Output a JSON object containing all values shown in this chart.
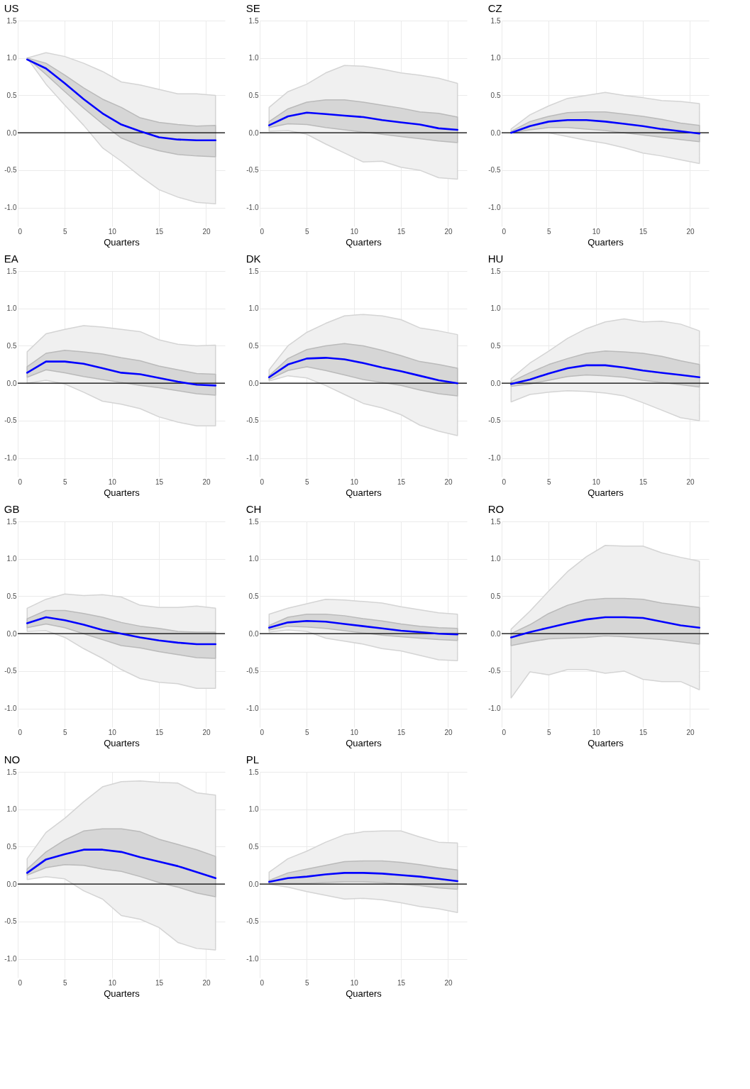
{
  "chart_data": [
    {
      "type": "line",
      "title": "US",
      "xlabel": "Quarters",
      "x": [
        1,
        3,
        5,
        7,
        9,
        11,
        13,
        15,
        17,
        19,
        21
      ],
      "xlim": [
        0,
        22
      ],
      "xticks": [
        0,
        5,
        10,
        15,
        20
      ],
      "ylim": [
        -1.25,
        1.5
      ],
      "yticks": [
        {
          "value": -1,
          "label": "-1.0"
        },
        -0.5,
        {
          "value": 0,
          "label": "0.0"
        },
        0.5,
        {
          "value": 1,
          "label": "1.0"
        },
        1.5
      ],
      "grid": true,
      "ref_lines": [
        {
          "axis": "y",
          "value": 0,
          "color": "#000000"
        }
      ],
      "series": [
        {
          "color": "#0000ff",
          "values": [
            null,
            null,
            null,
            null,
            null,
            null,
            null,
            null,
            null,
            null,
            null
          ],
          "lower": [
            1.0,
            0.65,
            0.37,
            0.1,
            -0.2,
            -0.38,
            -0.58,
            -0.76,
            -0.86,
            -0.93,
            -0.95
          ],
          "upper": [
            1.0,
            1.07,
            1.02,
            0.93,
            0.82,
            0.68,
            0.64,
            0.58,
            0.52,
            0.52,
            0.5
          ]
        },
        {
          "color": "#0000ff",
          "values": [
            0.98,
            0.86,
            0.66,
            0.45,
            0.26,
            0.11,
            0.02,
            -0.06,
            -0.09,
            -0.1,
            -0.1
          ],
          "lower": [
            1.0,
            0.78,
            0.55,
            0.33,
            0.12,
            -0.07,
            -0.17,
            -0.24,
            -0.29,
            -0.31,
            -0.32
          ],
          "upper": [
            1.0,
            0.93,
            0.77,
            0.6,
            0.45,
            0.34,
            0.2,
            0.14,
            0.11,
            0.09,
            0.1
          ]
        }
      ]
    },
    {
      "type": "line",
      "title": "SE",
      "xlabel": "Quarters",
      "x": [
        1,
        3,
        5,
        7,
        9,
        11,
        13,
        15,
        17,
        19,
        21
      ],
      "xlim": [
        0,
        22
      ],
      "xticks": [
        0,
        5,
        10,
        15,
        20
      ],
      "ylim": [
        -1.25,
        1.5
      ],
      "yticks": [
        {
          "value": -1,
          "label": "-1.0"
        },
        -0.5,
        {
          "value": 0,
          "label": "0.0"
        },
        0.5,
        {
          "value": 1,
          "label": "1.0"
        },
        1.5
      ],
      "grid": true,
      "ref_lines": [
        {
          "axis": "y",
          "value": 0,
          "color": "#000000"
        }
      ],
      "series": [
        {
          "color": "#0000ff",
          "values": [
            null,
            null,
            null,
            null,
            null,
            null,
            null,
            null,
            null,
            null,
            null
          ],
          "lower": [
            0.02,
            0.03,
            -0.02,
            -0.15,
            -0.27,
            -0.39,
            -0.38,
            -0.46,
            -0.5,
            -0.6,
            -0.62
          ],
          "upper": [
            0.34,
            0.55,
            0.65,
            0.8,
            0.9,
            0.89,
            0.85,
            0.8,
            0.77,
            0.73,
            0.66
          ]
        },
        {
          "color": "#0000ff",
          "values": [
            0.1,
            0.22,
            0.27,
            0.25,
            0.23,
            0.21,
            0.17,
            0.14,
            0.11,
            0.06,
            0.04
          ],
          "lower": [
            0.07,
            0.12,
            0.11,
            0.07,
            0.04,
            0.01,
            -0.02,
            -0.05,
            -0.08,
            -0.11,
            -0.13
          ],
          "upper": [
            0.15,
            0.32,
            0.41,
            0.44,
            0.44,
            0.41,
            0.37,
            0.33,
            0.28,
            0.26,
            0.21
          ]
        }
      ]
    },
    {
      "type": "line",
      "title": "CZ",
      "xlabel": "Quarters",
      "x": [
        1,
        3,
        5,
        7,
        9,
        11,
        13,
        15,
        17,
        19,
        21
      ],
      "xlim": [
        0,
        22
      ],
      "xticks": [
        0,
        5,
        10,
        15,
        20
      ],
      "ylim": [
        -1.25,
        1.5
      ],
      "yticks": [
        {
          "value": -1,
          "label": "-1.0"
        },
        -0.5,
        {
          "value": 0,
          "label": "0.0"
        },
        0.5,
        {
          "value": 1,
          "label": "1.0"
        },
        1.5
      ],
      "grid": true,
      "ref_lines": [
        {
          "axis": "y",
          "value": 0,
          "color": "#000000"
        }
      ],
      "series": [
        {
          "color": "#0000ff",
          "values": [
            null,
            null,
            null,
            null,
            null,
            null,
            null,
            null,
            null,
            null,
            null
          ],
          "lower": [
            0.0,
            0.0,
            0.0,
            -0.05,
            -0.1,
            -0.14,
            -0.2,
            -0.27,
            -0.31,
            -0.36,
            -0.41
          ],
          "upper": [
            0.05,
            0.24,
            0.36,
            0.46,
            0.5,
            0.54,
            0.5,
            0.47,
            0.43,
            0.42,
            0.39
          ]
        },
        {
          "color": "#0000ff",
          "values": [
            0.0,
            0.09,
            0.15,
            0.17,
            0.17,
            0.15,
            0.12,
            0.09,
            0.05,
            0.02,
            -0.01
          ],
          "lower": [
            0.0,
            0.04,
            0.07,
            0.07,
            0.05,
            0.03,
            0.0,
            -0.03,
            -0.06,
            -0.09,
            -0.12
          ],
          "upper": [
            0.02,
            0.15,
            0.22,
            0.27,
            0.28,
            0.28,
            0.25,
            0.22,
            0.18,
            0.13,
            0.1
          ]
        }
      ]
    },
    {
      "type": "line",
      "title": "EA",
      "xlabel": "Quarters",
      "x": [
        1,
        3,
        5,
        7,
        9,
        11,
        13,
        15,
        17,
        19,
        21
      ],
      "xlim": [
        0,
        22
      ],
      "xticks": [
        0,
        5,
        10,
        15,
        20
      ],
      "ylim": [
        -1.25,
        1.5
      ],
      "yticks": [
        {
          "value": -1,
          "label": "-1.0"
        },
        -0.5,
        {
          "value": 0,
          "label": "0.0"
        },
        0.5,
        {
          "value": 1,
          "label": "1.0"
        },
        1.5
      ],
      "grid": true,
      "ref_lines": [
        {
          "axis": "y",
          "value": 0,
          "color": "#000000"
        }
      ],
      "series": [
        {
          "color": "#0000ff",
          "values": [
            null,
            null,
            null,
            null,
            null,
            null,
            null,
            null,
            null,
            null,
            null
          ],
          "lower": [
            0.0,
            0.04,
            -0.01,
            -0.12,
            -0.24,
            -0.28,
            -0.34,
            -0.45,
            -0.52,
            -0.57,
            -0.57
          ],
          "upper": [
            0.42,
            0.66,
            0.72,
            0.77,
            0.75,
            0.72,
            0.69,
            0.58,
            0.52,
            0.5,
            0.51
          ]
        },
        {
          "color": "#0000ff",
          "values": [
            0.14,
            0.29,
            0.29,
            0.26,
            0.2,
            0.14,
            0.12,
            0.07,
            0.02,
            -0.02,
            -0.03
          ],
          "lower": [
            0.08,
            0.18,
            0.14,
            0.09,
            0.05,
            0.01,
            -0.03,
            -0.06,
            -0.1,
            -0.14,
            -0.16
          ],
          "upper": [
            0.22,
            0.4,
            0.44,
            0.42,
            0.39,
            0.34,
            0.3,
            0.23,
            0.18,
            0.13,
            0.12
          ]
        }
      ]
    },
    {
      "type": "line",
      "title": "DK",
      "xlabel": "Quarters",
      "x": [
        1,
        3,
        5,
        7,
        9,
        11,
        13,
        15,
        17,
        19,
        21
      ],
      "xlim": [
        0,
        22
      ],
      "xticks": [
        0,
        5,
        10,
        15,
        20
      ],
      "ylim": [
        -1.25,
        1.5
      ],
      "yticks": [
        {
          "value": -1,
          "label": "-1.0"
        },
        -0.5,
        {
          "value": 0,
          "label": "0.0"
        },
        0.5,
        {
          "value": 1,
          "label": "1.0"
        },
        1.5
      ],
      "grid": true,
      "ref_lines": [
        {
          "axis": "y",
          "value": 0,
          "color": "#000000"
        }
      ],
      "series": [
        {
          "color": "#0000ff",
          "values": [
            null,
            null,
            null,
            null,
            null,
            null,
            null,
            null,
            null,
            null,
            null
          ],
          "lower": [
            0.03,
            0.1,
            0.07,
            -0.03,
            -0.15,
            -0.27,
            -0.33,
            -0.42,
            -0.56,
            -0.64,
            -0.7
          ],
          "upper": [
            0.18,
            0.5,
            0.68,
            0.8,
            0.9,
            0.92,
            0.9,
            0.85,
            0.74,
            0.7,
            0.65
          ]
        },
        {
          "color": "#0000ff",
          "values": [
            0.08,
            0.25,
            0.33,
            0.34,
            0.32,
            0.27,
            0.21,
            0.16,
            0.1,
            0.04,
            0.0
          ],
          "lower": [
            0.05,
            0.17,
            0.22,
            0.17,
            0.11,
            0.05,
            0.01,
            -0.03,
            -0.09,
            -0.14,
            -0.17
          ],
          "upper": [
            0.1,
            0.33,
            0.45,
            0.5,
            0.53,
            0.5,
            0.44,
            0.37,
            0.29,
            0.25,
            0.2
          ]
        }
      ]
    },
    {
      "type": "line",
      "title": "HU",
      "xlabel": "Quarters",
      "x": [
        1,
        3,
        5,
        7,
        9,
        11,
        13,
        15,
        17,
        19,
        21
      ],
      "xlim": [
        0,
        22
      ],
      "xticks": [
        0,
        5,
        10,
        15,
        20
      ],
      "ylim": [
        -1.25,
        1.5
      ],
      "yticks": [
        {
          "value": -1,
          "label": "-1.0"
        },
        -0.5,
        {
          "value": 0,
          "label": "0.0"
        },
        0.5,
        {
          "value": 1,
          "label": "1.0"
        },
        1.5
      ],
      "grid": true,
      "ref_lines": [
        {
          "axis": "y",
          "value": 0,
          "color": "#000000"
        }
      ],
      "series": [
        {
          "color": "#0000ff",
          "values": [
            null,
            null,
            null,
            null,
            null,
            null,
            null,
            null,
            null,
            null,
            null
          ],
          "lower": [
            -0.25,
            -0.15,
            -0.12,
            -0.1,
            -0.11,
            -0.13,
            -0.17,
            -0.26,
            -0.36,
            -0.46,
            -0.5
          ],
          "upper": [
            0.06,
            0.27,
            0.43,
            0.6,
            0.73,
            0.82,
            0.86,
            0.82,
            0.83,
            0.79,
            0.7
          ]
        },
        {
          "color": "#0000ff",
          "values": [
            -0.01,
            0.05,
            0.13,
            0.2,
            0.24,
            0.24,
            0.21,
            0.17,
            0.14,
            0.11,
            0.08
          ],
          "lower": [
            -0.04,
            -0.01,
            0.04,
            0.09,
            0.11,
            0.1,
            0.08,
            0.04,
            0.01,
            -0.02,
            -0.05
          ],
          "upper": [
            0.02,
            0.14,
            0.25,
            0.33,
            0.4,
            0.43,
            0.42,
            0.4,
            0.36,
            0.3,
            0.25
          ]
        }
      ]
    },
    {
      "type": "line",
      "title": "GB",
      "xlabel": "Quarters",
      "x": [
        1,
        3,
        5,
        7,
        9,
        11,
        13,
        15,
        17,
        19,
        21
      ],
      "xlim": [
        0,
        22
      ],
      "xticks": [
        0,
        5,
        10,
        15,
        20
      ],
      "ylim": [
        -1.25,
        1.5
      ],
      "yticks": [
        {
          "value": -1,
          "label": "-1.0"
        },
        -0.5,
        {
          "value": 0,
          "label": "0.0"
        },
        0.5,
        {
          "value": 1,
          "label": "1.0"
        },
        1.5
      ],
      "grid": true,
      "ref_lines": [
        {
          "axis": "y",
          "value": 0,
          "color": "#000000"
        }
      ],
      "series": [
        {
          "color": "#0000ff",
          "values": [
            null,
            null,
            null,
            null,
            null,
            null,
            null,
            null,
            null,
            null,
            null
          ],
          "lower": [
            0.03,
            0.04,
            -0.05,
            -0.2,
            -0.33,
            -0.48,
            -0.6,
            -0.65,
            -0.67,
            -0.73,
            -0.73
          ],
          "upper": [
            0.34,
            0.46,
            0.53,
            0.51,
            0.52,
            0.49,
            0.38,
            0.35,
            0.35,
            0.37,
            0.34
          ]
        },
        {
          "color": "#0000ff",
          "values": [
            0.14,
            0.22,
            0.18,
            0.12,
            0.05,
            0.0,
            -0.05,
            -0.09,
            -0.12,
            -0.14,
            -0.14
          ],
          "lower": [
            0.08,
            0.13,
            0.08,
            0.0,
            -0.08,
            -0.16,
            -0.19,
            -0.24,
            -0.28,
            -0.32,
            -0.33
          ],
          "upper": [
            0.2,
            0.31,
            0.31,
            0.27,
            0.22,
            0.15,
            0.1,
            0.07,
            0.03,
            0.02,
            0.02
          ]
        }
      ]
    },
    {
      "type": "line",
      "title": "CH",
      "xlabel": "Quarters",
      "x": [
        1,
        3,
        5,
        7,
        9,
        11,
        13,
        15,
        17,
        19,
        21
      ],
      "xlim": [
        0,
        22
      ],
      "xticks": [
        0,
        5,
        10,
        15,
        20
      ],
      "ylim": [
        -1.25,
        1.5
      ],
      "yticks": [
        {
          "value": -1,
          "label": "-1.0"
        },
        -0.5,
        {
          "value": 0,
          "label": "0.0"
        },
        0.5,
        {
          "value": 1,
          "label": "1.0"
        },
        1.5
      ],
      "grid": true,
      "ref_lines": [
        {
          "axis": "y",
          "value": 0,
          "color": "#000000"
        }
      ],
      "series": [
        {
          "color": "#0000ff",
          "values": [
            null,
            null,
            null,
            null,
            null,
            null,
            null,
            null,
            null,
            null,
            null
          ],
          "lower": [
            0.02,
            0.05,
            0.03,
            -0.06,
            -0.1,
            -0.14,
            -0.2,
            -0.23,
            -0.29,
            -0.35,
            -0.36
          ],
          "upper": [
            0.26,
            0.34,
            0.4,
            0.46,
            0.45,
            0.43,
            0.41,
            0.36,
            0.32,
            0.28,
            0.26
          ]
        },
        {
          "color": "#0000ff",
          "values": [
            0.08,
            0.15,
            0.17,
            0.16,
            0.13,
            0.1,
            0.07,
            0.04,
            0.02,
            0.0,
            -0.01
          ],
          "lower": [
            0.05,
            0.1,
            0.09,
            0.07,
            0.04,
            0.01,
            -0.02,
            -0.04,
            -0.06,
            -0.08,
            -0.09
          ],
          "upper": [
            0.11,
            0.22,
            0.26,
            0.26,
            0.24,
            0.2,
            0.17,
            0.13,
            0.1,
            0.08,
            0.07
          ]
        }
      ]
    },
    {
      "type": "line",
      "title": "RO",
      "xlabel": "Quarters",
      "x": [
        1,
        3,
        5,
        7,
        9,
        11,
        13,
        15,
        17,
        19,
        21
      ],
      "xlim": [
        0,
        22
      ],
      "xticks": [
        0,
        5,
        10,
        15,
        20
      ],
      "ylim": [
        -1.25,
        1.5
      ],
      "yticks": [
        {
          "value": -1,
          "label": "-1.0"
        },
        -0.5,
        {
          "value": 0,
          "label": "0.0"
        },
        0.5,
        {
          "value": 1,
          "label": "1.0"
        },
        1.5
      ],
      "grid": true,
      "ref_lines": [
        {
          "axis": "y",
          "value": 0,
          "color": "#000000"
        }
      ],
      "series": [
        {
          "color": "#0000ff",
          "values": [
            null,
            null,
            null,
            null,
            null,
            null,
            null,
            null,
            null,
            null,
            null
          ],
          "lower": [
            -0.86,
            -0.51,
            -0.55,
            -0.48,
            -0.48,
            -0.53,
            -0.5,
            -0.61,
            -0.64,
            -0.64,
            -0.75
          ],
          "upper": [
            0.06,
            0.3,
            0.57,
            0.83,
            1.03,
            1.18,
            1.17,
            1.17,
            1.08,
            1.02,
            0.97
          ]
        },
        {
          "color": "#0000ff",
          "values": [
            -0.05,
            0.02,
            0.08,
            0.14,
            0.19,
            0.22,
            0.22,
            0.21,
            0.16,
            0.11,
            0.08
          ],
          "lower": [
            -0.16,
            -0.11,
            -0.07,
            -0.06,
            -0.05,
            -0.03,
            -0.04,
            -0.06,
            -0.08,
            -0.11,
            -0.14
          ],
          "upper": [
            0.0,
            0.12,
            0.27,
            0.38,
            0.45,
            0.47,
            0.47,
            0.46,
            0.41,
            0.38,
            0.35
          ]
        }
      ]
    },
    {
      "type": "line",
      "title": "NO",
      "xlabel": "Quarters",
      "x": [
        1,
        3,
        5,
        7,
        9,
        11,
        13,
        15,
        17,
        19,
        21
      ],
      "xlim": [
        0,
        22
      ],
      "xticks": [
        0,
        5,
        10,
        15,
        20
      ],
      "ylim": [
        -1.25,
        1.5
      ],
      "yticks": [
        {
          "value": -1,
          "label": "-1.0"
        },
        -0.5,
        {
          "value": 0,
          "label": "0.0"
        },
        0.5,
        {
          "value": 1,
          "label": "1.0"
        },
        1.5
      ],
      "grid": true,
      "ref_lines": [
        {
          "axis": "y",
          "value": 0,
          "color": "#000000"
        }
      ],
      "series": [
        {
          "color": "#0000ff",
          "values": [
            null,
            null,
            null,
            null,
            null,
            null,
            null,
            null,
            null,
            null,
            null
          ],
          "lower": [
            0.06,
            0.1,
            0.07,
            -0.09,
            -0.2,
            -0.42,
            -0.47,
            -0.58,
            -0.78,
            -0.86,
            -0.88
          ],
          "upper": [
            0.34,
            0.69,
            0.88,
            1.1,
            1.3,
            1.37,
            1.38,
            1.36,
            1.35,
            1.22,
            1.19
          ]
        },
        {
          "color": "#0000ff",
          "values": [
            0.15,
            0.33,
            0.4,
            0.46,
            0.46,
            0.43,
            0.36,
            0.3,
            0.24,
            0.16,
            0.08
          ],
          "lower": [
            0.12,
            0.22,
            0.26,
            0.25,
            0.2,
            0.17,
            0.1,
            0.02,
            -0.04,
            -0.12,
            -0.17
          ],
          "upper": [
            0.2,
            0.43,
            0.59,
            0.71,
            0.74,
            0.74,
            0.7,
            0.6,
            0.53,
            0.46,
            0.37
          ]
        }
      ]
    },
    {
      "type": "line",
      "title": "PL",
      "xlabel": "Quarters",
      "x": [
        1,
        3,
        5,
        7,
        9,
        11,
        13,
        15,
        17,
        19,
        21
      ],
      "xlim": [
        0,
        22
      ],
      "xticks": [
        0,
        5,
        10,
        15,
        20
      ],
      "ylim": [
        -1.25,
        1.5
      ],
      "yticks": [
        {
          "value": -1,
          "label": "-1.0"
        },
        -0.5,
        {
          "value": 0,
          "label": "0.0"
        },
        0.5,
        {
          "value": 1,
          "label": "1.0"
        },
        1.5
      ],
      "grid": true,
      "ref_lines": [
        {
          "axis": "y",
          "value": 0,
          "color": "#000000"
        }
      ],
      "series": [
        {
          "color": "#0000ff",
          "values": [
            null,
            null,
            null,
            null,
            null,
            null,
            null,
            null,
            null,
            null,
            null
          ],
          "lower": [
            0.0,
            -0.04,
            -0.1,
            -0.15,
            -0.2,
            -0.19,
            -0.21,
            -0.25,
            -0.3,
            -0.33,
            -0.38
          ],
          "upper": [
            0.16,
            0.34,
            0.44,
            0.56,
            0.66,
            0.7,
            0.71,
            0.71,
            0.63,
            0.56,
            0.55
          ]
        },
        {
          "color": "#0000ff",
          "values": [
            0.03,
            0.08,
            0.1,
            0.13,
            0.15,
            0.15,
            0.14,
            0.12,
            0.1,
            0.07,
            0.04
          ],
          "lower": [
            0.01,
            0.01,
            0.01,
            0.02,
            0.03,
            0.03,
            0.02,
            0.0,
            -0.02,
            -0.05,
            -0.07
          ],
          "upper": [
            0.05,
            0.15,
            0.2,
            0.25,
            0.3,
            0.31,
            0.31,
            0.29,
            0.26,
            0.22,
            0.19
          ]
        }
      ]
    }
  ]
}
